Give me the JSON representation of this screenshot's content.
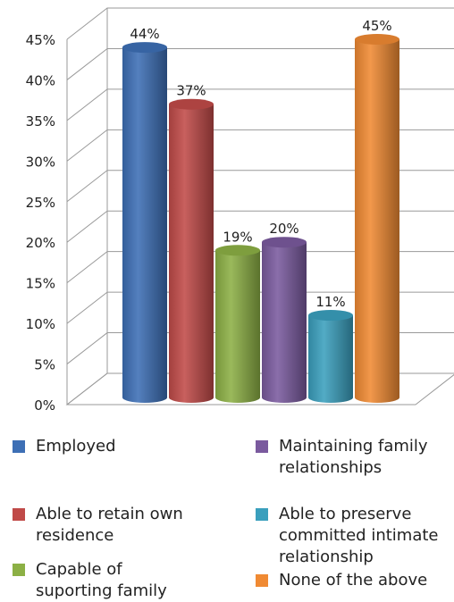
{
  "chart_data": {
    "type": "bar",
    "categories": [
      "Employed",
      "Able to retain own residence",
      "Capable of suporting family",
      "Maintaining family relationships",
      "Able to preserve committed intimate relationship",
      "None of the above"
    ],
    "values": [
      44,
      37,
      19,
      20,
      11,
      45
    ],
    "data_labels": [
      "44%",
      "37%",
      "19%",
      "20%",
      "11%",
      "45%"
    ],
    "yticks": [
      "0%",
      "5%",
      "10%",
      "15%",
      "20%",
      "25%",
      "30%",
      "35%",
      "40%",
      "45%"
    ],
    "ylim": [
      0,
      45
    ],
    "grid": true,
    "style": "3d-cylinder",
    "legend_position": "bottom",
    "colors": [
      "#3d6fb5",
      "#c04a48",
      "#8cb045",
      "#7a5a9e",
      "#3a9fbd",
      "#f08a33"
    ],
    "title": "",
    "xlabel": "",
    "ylabel": ""
  },
  "legend": {
    "items": [
      {
        "label": "Employed",
        "color": "#3d6fb5"
      },
      {
        "label": "Able to retain own residence",
        "color": "#c04a48"
      },
      {
        "label": "Capable of suporting family",
        "color": "#8cb045"
      },
      {
        "label": "Maintaining family relationships",
        "color": "#7a5a9e"
      },
      {
        "label": "Able to preserve committed intimate relationship",
        "color": "#3a9fbd"
      },
      {
        "label": "None of the above",
        "color": "#f08a33"
      }
    ]
  }
}
